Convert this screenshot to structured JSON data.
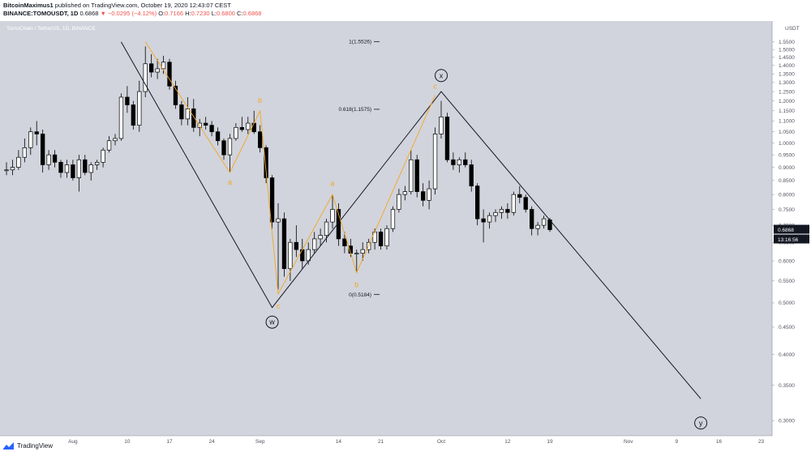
{
  "header": {
    "author": "BitcoinMaximus1",
    "published": "published on TradingView.com, October 19, 2020 12:43:07 CEST",
    "symbol": "BINANCE:TOMOUSDT, 1D",
    "last": "0.6868",
    "change": "−0.0295 (−4.12%)",
    "o_label": "O:",
    "o": "0.7166",
    "h_label": "H:",
    "h": "0.7230",
    "l_label": "L:",
    "l": "0.6800",
    "c_label": "C:",
    "c": "0.6868"
  },
  "footer": {
    "brand": "TradingView"
  },
  "colors": {
    "background": "#d1d4dc",
    "up_candle": "#ffffff",
    "down_candle": "#000000",
    "wave_orange": "#f5a623",
    "price_tag": "#131722"
  },
  "chart_data": {
    "type": "candlestick",
    "title": "TomoChain / TetherUS, 1D, BINANCE",
    "y_unit": "USDT",
    "y_scale": "log",
    "ylim": [
      0.285,
      1.65
    ],
    "y_ticks": [
      "1.5500",
      "1.5000",
      "1.4500",
      "1.4000",
      "1.3500",
      "1.3000",
      "1.2500",
      "1.2000",
      "1.1500",
      "1.1000",
      "1.0500",
      "1.0000",
      "0.9500",
      "0.9000",
      "0.8500",
      "0.8000",
      "0.7500",
      "0.7000",
      "0.6500",
      "0.6000",
      "0.5500",
      "0.5000",
      "0.4500",
      "0.4000",
      "0.3500",
      "0.3000"
    ],
    "x_range": [
      "2020-07-21",
      "2020-11-24"
    ],
    "x_ticks": [
      {
        "date": "2020-08-01",
        "label": "Aug"
      },
      {
        "date": "2020-08-10",
        "label": "10"
      },
      {
        "date": "2020-08-17",
        "label": "17"
      },
      {
        "date": "2020-08-24",
        "label": "24"
      },
      {
        "date": "2020-09-01",
        "label": "Sep"
      },
      {
        "date": "2020-09-14",
        "label": "14"
      },
      {
        "date": "2020-09-21",
        "label": "21"
      },
      {
        "date": "2020-10-01",
        "label": "Oct"
      },
      {
        "date": "2020-10-12",
        "label": "12"
      },
      {
        "date": "2020-10-19",
        "label": "19"
      },
      {
        "date": "2020-11-01",
        "label": "Nov"
      },
      {
        "date": "2020-11-09",
        "label": "9"
      },
      {
        "date": "2020-11-16",
        "label": "16"
      },
      {
        "date": "2020-11-23",
        "label": "23"
      }
    ],
    "last_price_label": "0.6868",
    "countdown_label": "13:16:56",
    "fib_levels": [
      {
        "label": "1(1.5526)",
        "value": 1.5526
      },
      {
        "label": "0.618(1.1575)",
        "value": 1.1575
      },
      {
        "label": "0(0.5184)",
        "value": 0.5184
      }
    ],
    "wave_lines": [
      {
        "color": "black",
        "points": [
          [
            "2020-08-09",
            1.55
          ],
          [
            "2020-09-03",
            0.49
          ],
          [
            "2020-10-01",
            1.25
          ],
          [
            "2020-11-13",
            0.33
          ]
        ]
      },
      {
        "color": "orange",
        "points": [
          [
            "2020-08-13",
            1.55
          ],
          [
            "2020-08-27",
            0.88
          ],
          [
            "2020-09-01",
            1.15
          ],
          [
            "2020-09-04",
            0.52
          ],
          [
            "2020-09-13",
            0.8
          ],
          [
            "2020-09-17",
            0.57
          ],
          [
            "2020-09-30",
            1.23
          ]
        ]
      }
    ],
    "wave_labels": [
      {
        "text": "a",
        "date": "2020-08-27",
        "value": 0.835,
        "color": "orange"
      },
      {
        "text": "b",
        "date": "2020-09-01",
        "value": 1.19,
        "color": "orange"
      },
      {
        "text": "c",
        "date": "2020-09-04",
        "value": 0.488,
        "color": "orange"
      },
      {
        "text": "a",
        "date": "2020-09-13",
        "value": 0.83,
        "color": "orange"
      },
      {
        "text": "b",
        "date": "2020-09-17",
        "value": 0.535,
        "color": "orange"
      },
      {
        "text": "c",
        "date": "2020-09-30",
        "value": 1.265,
        "color": "orange"
      }
    ],
    "circled_labels": [
      {
        "text": "x",
        "date": "2020-10-01",
        "value": 1.34
      },
      {
        "text": "w",
        "date": "2020-09-03",
        "value": 0.46
      },
      {
        "text": "y",
        "date": "2020-11-13",
        "value": 0.297
      }
    ],
    "candles": [
      {
        "date": "2020-07-21",
        "o": 0.89,
        "h": 0.92,
        "l": 0.87,
        "c": 0.89
      },
      {
        "date": "2020-07-22",
        "o": 0.89,
        "h": 0.93,
        "l": 0.87,
        "c": 0.9
      },
      {
        "date": "2020-07-23",
        "o": 0.9,
        "h": 0.97,
        "l": 0.89,
        "c": 0.94
      },
      {
        "date": "2020-07-24",
        "o": 0.94,
        "h": 1.02,
        "l": 0.92,
        "c": 0.98
      },
      {
        "date": "2020-07-25",
        "o": 0.98,
        "h": 1.07,
        "l": 0.95,
        "c": 1.05
      },
      {
        "date": "2020-07-26",
        "o": 1.05,
        "h": 1.1,
        "l": 0.99,
        "c": 1.04
      },
      {
        "date": "2020-07-27",
        "o": 1.04,
        "h": 1.06,
        "l": 0.88,
        "c": 0.91
      },
      {
        "date": "2020-07-28",
        "o": 0.91,
        "h": 0.97,
        "l": 0.89,
        "c": 0.95
      },
      {
        "date": "2020-07-29",
        "o": 0.95,
        "h": 0.97,
        "l": 0.9,
        "c": 0.92
      },
      {
        "date": "2020-07-30",
        "o": 0.92,
        "h": 0.93,
        "l": 0.86,
        "c": 0.88
      },
      {
        "date": "2020-07-31",
        "o": 0.88,
        "h": 0.93,
        "l": 0.86,
        "c": 0.91
      },
      {
        "date": "2020-08-01",
        "o": 0.91,
        "h": 0.93,
        "l": 0.85,
        "c": 0.86
      },
      {
        "date": "2020-08-02",
        "o": 0.86,
        "h": 0.95,
        "l": 0.81,
        "c": 0.93
      },
      {
        "date": "2020-08-03",
        "o": 0.93,
        "h": 0.95,
        "l": 0.87,
        "c": 0.88
      },
      {
        "date": "2020-08-04",
        "o": 0.88,
        "h": 0.92,
        "l": 0.85,
        "c": 0.91
      },
      {
        "date": "2020-08-05",
        "o": 0.91,
        "h": 0.93,
        "l": 0.89,
        "c": 0.92
      },
      {
        "date": "2020-08-06",
        "o": 0.92,
        "h": 0.98,
        "l": 0.9,
        "c": 0.97
      },
      {
        "date": "2020-08-07",
        "o": 0.97,
        "h": 1.03,
        "l": 0.96,
        "c": 1.01
      },
      {
        "date": "2020-08-08",
        "o": 1.01,
        "h": 1.04,
        "l": 0.99,
        "c": 1.02
      },
      {
        "date": "2020-08-09",
        "o": 1.02,
        "h": 1.24,
        "l": 1.01,
        "c": 1.22
      },
      {
        "date": "2020-08-10",
        "o": 1.22,
        "h": 1.28,
        "l": 1.14,
        "c": 1.18
      },
      {
        "date": "2020-08-11",
        "o": 1.18,
        "h": 1.2,
        "l": 1.06,
        "c": 1.08
      },
      {
        "date": "2020-08-12",
        "o": 1.08,
        "h": 1.31,
        "l": 1.05,
        "c": 1.25
      },
      {
        "date": "2020-08-13",
        "o": 1.25,
        "h": 1.52,
        "l": 1.22,
        "c": 1.41
      },
      {
        "date": "2020-08-14",
        "o": 1.41,
        "h": 1.47,
        "l": 1.33,
        "c": 1.36
      },
      {
        "date": "2020-08-15",
        "o": 1.36,
        "h": 1.44,
        "l": 1.32,
        "c": 1.38
      },
      {
        "date": "2020-08-16",
        "o": 1.38,
        "h": 1.46,
        "l": 1.35,
        "c": 1.42
      },
      {
        "date": "2020-08-17",
        "o": 1.42,
        "h": 1.44,
        "l": 1.26,
        "c": 1.28
      },
      {
        "date": "2020-08-18",
        "o": 1.28,
        "h": 1.31,
        "l": 1.16,
        "c": 1.18
      },
      {
        "date": "2020-08-19",
        "o": 1.18,
        "h": 1.2,
        "l": 1.08,
        "c": 1.11
      },
      {
        "date": "2020-08-20",
        "o": 1.11,
        "h": 1.22,
        "l": 1.08,
        "c": 1.16
      },
      {
        "date": "2020-08-21",
        "o": 1.16,
        "h": 1.21,
        "l": 1.05,
        "c": 1.07
      },
      {
        "date": "2020-08-22",
        "o": 1.07,
        "h": 1.11,
        "l": 1.03,
        "c": 1.09
      },
      {
        "date": "2020-08-23",
        "o": 1.09,
        "h": 1.12,
        "l": 1.06,
        "c": 1.08
      },
      {
        "date": "2020-08-24",
        "o": 1.08,
        "h": 1.1,
        "l": 1.03,
        "c": 1.05
      },
      {
        "date": "2020-08-25",
        "o": 1.05,
        "h": 1.07,
        "l": 0.99,
        "c": 1.01
      },
      {
        "date": "2020-08-26",
        "o": 1.01,
        "h": 1.02,
        "l": 0.93,
        "c": 0.95
      },
      {
        "date": "2020-08-27",
        "o": 0.95,
        "h": 1.04,
        "l": 0.88,
        "c": 1.02
      },
      {
        "date": "2020-08-28",
        "o": 1.02,
        "h": 1.09,
        "l": 1.01,
        "c": 1.07
      },
      {
        "date": "2020-08-29",
        "o": 1.07,
        "h": 1.12,
        "l": 1.05,
        "c": 1.06
      },
      {
        "date": "2020-08-30",
        "o": 1.06,
        "h": 1.12,
        "l": 1.04,
        "c": 1.09
      },
      {
        "date": "2020-08-31",
        "o": 1.09,
        "h": 1.15,
        "l": 1.04,
        "c": 1.05
      },
      {
        "date": "2020-09-01",
        "o": 1.05,
        "h": 1.08,
        "l": 0.96,
        "c": 0.98
      },
      {
        "date": "2020-09-02",
        "o": 0.98,
        "h": 0.99,
        "l": 0.84,
        "c": 0.86
      },
      {
        "date": "2020-09-03",
        "o": 0.86,
        "h": 0.87,
        "l": 0.69,
        "c": 0.71
      },
      {
        "date": "2020-09-04",
        "o": 0.71,
        "h": 0.77,
        "l": 0.53,
        "c": 0.72
      },
      {
        "date": "2020-09-05",
        "o": 0.72,
        "h": 0.74,
        "l": 0.56,
        "c": 0.58
      },
      {
        "date": "2020-09-06",
        "o": 0.58,
        "h": 0.66,
        "l": 0.55,
        "c": 0.65
      },
      {
        "date": "2020-09-07",
        "o": 0.65,
        "h": 0.7,
        "l": 0.61,
        "c": 0.63
      },
      {
        "date": "2020-09-08",
        "o": 0.63,
        "h": 0.66,
        "l": 0.58,
        "c": 0.6
      },
      {
        "date": "2020-09-09",
        "o": 0.6,
        "h": 0.65,
        "l": 0.59,
        "c": 0.63
      },
      {
        "date": "2020-09-10",
        "o": 0.63,
        "h": 0.68,
        "l": 0.62,
        "c": 0.66
      },
      {
        "date": "2020-09-11",
        "o": 0.66,
        "h": 0.69,
        "l": 0.64,
        "c": 0.67
      },
      {
        "date": "2020-09-12",
        "o": 0.67,
        "h": 0.72,
        "l": 0.65,
        "c": 0.71
      },
      {
        "date": "2020-09-13",
        "o": 0.71,
        "h": 0.8,
        "l": 0.69,
        "c": 0.75
      },
      {
        "date": "2020-09-14",
        "o": 0.75,
        "h": 0.77,
        "l": 0.64,
        "c": 0.66
      },
      {
        "date": "2020-09-15",
        "o": 0.66,
        "h": 0.68,
        "l": 0.62,
        "c": 0.64
      },
      {
        "date": "2020-09-16",
        "o": 0.64,
        "h": 0.66,
        "l": 0.61,
        "c": 0.62
      },
      {
        "date": "2020-09-17",
        "o": 0.62,
        "h": 0.63,
        "l": 0.57,
        "c": 0.62
      },
      {
        "date": "2020-09-18",
        "o": 0.62,
        "h": 0.65,
        "l": 0.6,
        "c": 0.63
      },
      {
        "date": "2020-09-19",
        "o": 0.63,
        "h": 0.66,
        "l": 0.62,
        "c": 0.65
      },
      {
        "date": "2020-09-20",
        "o": 0.65,
        "h": 0.69,
        "l": 0.63,
        "c": 0.68
      },
      {
        "date": "2020-09-21",
        "o": 0.68,
        "h": 0.69,
        "l": 0.63,
        "c": 0.64
      },
      {
        "date": "2020-09-22",
        "o": 0.64,
        "h": 0.7,
        "l": 0.63,
        "c": 0.69
      },
      {
        "date": "2020-09-23",
        "o": 0.69,
        "h": 0.76,
        "l": 0.68,
        "c": 0.75
      },
      {
        "date": "2020-09-24",
        "o": 0.75,
        "h": 0.82,
        "l": 0.74,
        "c": 0.8
      },
      {
        "date": "2020-09-25",
        "o": 0.8,
        "h": 0.83,
        "l": 0.78,
        "c": 0.81
      },
      {
        "date": "2020-09-26",
        "o": 0.81,
        "h": 0.97,
        "l": 0.8,
        "c": 0.93
      },
      {
        "date": "2020-09-27",
        "o": 0.93,
        "h": 0.95,
        "l": 0.79,
        "c": 0.81
      },
      {
        "date": "2020-09-28",
        "o": 0.81,
        "h": 0.84,
        "l": 0.76,
        "c": 0.78
      },
      {
        "date": "2020-09-29",
        "o": 0.78,
        "h": 0.85,
        "l": 0.75,
        "c": 0.82
      },
      {
        "date": "2020-09-30",
        "o": 0.82,
        "h": 1.07,
        "l": 0.8,
        "c": 1.04
      },
      {
        "date": "2020-10-01",
        "o": 1.04,
        "h": 1.2,
        "l": 1.02,
        "c": 1.12
      },
      {
        "date": "2020-10-02",
        "o": 1.12,
        "h": 1.14,
        "l": 0.92,
        "c": 0.93
      },
      {
        "date": "2020-10-03",
        "o": 0.93,
        "h": 0.96,
        "l": 0.89,
        "c": 0.91
      },
      {
        "date": "2020-10-04",
        "o": 0.91,
        "h": 0.94,
        "l": 0.88,
        "c": 0.93
      },
      {
        "date": "2020-10-05",
        "o": 0.93,
        "h": 0.96,
        "l": 0.9,
        "c": 0.91
      },
      {
        "date": "2020-10-06",
        "o": 0.91,
        "h": 0.93,
        "l": 0.81,
        "c": 0.83
      },
      {
        "date": "2020-10-07",
        "o": 0.83,
        "h": 0.84,
        "l": 0.7,
        "c": 0.72
      },
      {
        "date": "2020-10-08",
        "o": 0.72,
        "h": 0.75,
        "l": 0.65,
        "c": 0.71
      },
      {
        "date": "2020-10-09",
        "o": 0.71,
        "h": 0.74,
        "l": 0.69,
        "c": 0.73
      },
      {
        "date": "2020-10-10",
        "o": 0.73,
        "h": 0.75,
        "l": 0.71,
        "c": 0.74
      },
      {
        "date": "2020-10-11",
        "o": 0.74,
        "h": 0.76,
        "l": 0.72,
        "c": 0.75
      },
      {
        "date": "2020-10-12",
        "o": 0.75,
        "h": 0.77,
        "l": 0.72,
        "c": 0.74
      },
      {
        "date": "2020-10-13",
        "o": 0.74,
        "h": 0.81,
        "l": 0.73,
        "c": 0.8
      },
      {
        "date": "2020-10-14",
        "o": 0.8,
        "h": 0.83,
        "l": 0.77,
        "c": 0.79
      },
      {
        "date": "2020-10-15",
        "o": 0.79,
        "h": 0.8,
        "l": 0.74,
        "c": 0.75
      },
      {
        "date": "2020-10-16",
        "o": 0.75,
        "h": 0.76,
        "l": 0.67,
        "c": 0.69
      },
      {
        "date": "2020-10-17",
        "o": 0.69,
        "h": 0.71,
        "l": 0.67,
        "c": 0.7
      },
      {
        "date": "2020-10-18",
        "o": 0.7,
        "h": 0.73,
        "l": 0.69,
        "c": 0.72
      },
      {
        "date": "2020-10-19",
        "o": 0.7166,
        "h": 0.723,
        "l": 0.68,
        "c": 0.6868
      }
    ]
  }
}
